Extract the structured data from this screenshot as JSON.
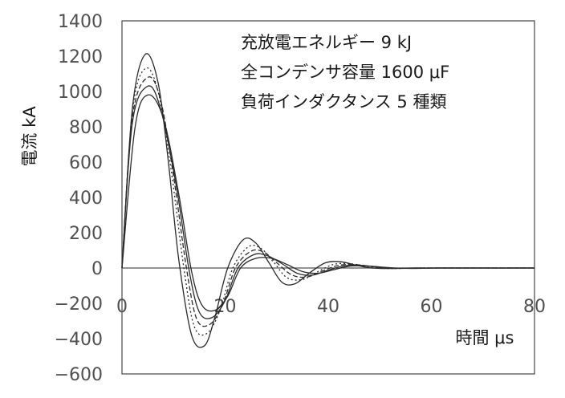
{
  "chart_data": {
    "type": "line",
    "ylabel": "電流 kA",
    "xlabel": "時間 μs",
    "xlim": [
      0,
      80
    ],
    "ylim": [
      -600,
      1400
    ],
    "x_ticks": [
      0,
      20,
      40,
      60,
      80
    ],
    "y_ticks": [
      1400,
      1200,
      1000,
      800,
      600,
      400,
      200,
      0,
      -200,
      -400,
      -600
    ],
    "x_tick_labels": [
      "0",
      "20",
      "40",
      "60",
      "80"
    ],
    "y_tick_labels": [
      "1400",
      "1200",
      "1000",
      "800",
      "600",
      "400",
      "200",
      "0",
      "−200",
      "−400",
      "−600"
    ],
    "grid": false,
    "annotations": [
      "充放電エネルギー 9 kJ",
      "全コンデンサ容量 1600 μF",
      "負荷インダクタンス 5 種類"
    ],
    "series": [
      {
        "style": "solid",
        "x": [
          0,
          2,
          4.5,
          7,
          9,
          11,
          13.5,
          16,
          18,
          20.5,
          23.5,
          26,
          28.5,
          31,
          33.5,
          36.5,
          39.5,
          42.5,
          45.5,
          48.5,
          52,
          56,
          60,
          65,
          70,
          80
        ],
        "y": [
          0,
          900,
          1210,
          1050,
          600,
          50,
          -380,
          -440,
          -280,
          0,
          160,
          140,
          30,
          -80,
          -90,
          -25,
          30,
          35,
          15,
          0,
          -3,
          0,
          0,
          0,
          0,
          0
        ]
      },
      {
        "style": "dotted",
        "x": [
          0,
          2,
          4.5,
          7,
          9.5,
          12,
          14,
          16.5,
          19,
          21.5,
          24.5,
          27,
          29.5,
          32,
          35,
          38,
          41,
          44,
          47,
          50,
          53,
          57,
          62,
          68,
          80
        ],
        "y": [
          0,
          880,
          1130,
          1000,
          560,
          0,
          -330,
          -370,
          -240,
          0,
          120,
          110,
          30,
          -55,
          -65,
          -20,
          20,
          25,
          12,
          0,
          -3,
          0,
          0,
          0,
          0
        ]
      },
      {
        "style": "dashed",
        "x": [
          0,
          2,
          5,
          7.5,
          10,
          12.5,
          14.5,
          17,
          19.5,
          22,
          25,
          27.5,
          30,
          33,
          36,
          39,
          42,
          45,
          48,
          51,
          54,
          58,
          63,
          70,
          80
        ],
        "y": [
          0,
          850,
          1080,
          950,
          520,
          0,
          -290,
          -320,
          -210,
          0,
          95,
          90,
          30,
          -40,
          -50,
          -15,
          15,
          20,
          10,
          0,
          -2,
          0,
          0,
          0,
          0
        ]
      },
      {
        "style": "solid",
        "x": [
          0,
          2,
          5,
          7.5,
          10.5,
          13,
          15,
          17.5,
          20,
          22.5,
          25.5,
          28,
          31,
          34,
          37,
          40,
          43,
          46,
          49,
          52,
          56,
          60,
          65,
          72,
          80
        ],
        "y": [
          0,
          820,
          1030,
          900,
          470,
          -10,
          -250,
          -280,
          -185,
          0,
          75,
          72,
          25,
          -30,
          -40,
          -12,
          12,
          15,
          8,
          0,
          -2,
          0,
          0,
          0,
          0
        ]
      },
      {
        "style": "solid",
        "x": [
          0,
          2.5,
          5,
          8,
          11,
          13.5,
          15.5,
          18,
          20.5,
          23,
          26,
          29,
          32,
          35,
          38,
          41,
          44,
          47,
          50,
          53,
          57,
          61,
          66,
          74,
          80
        ],
        "y": [
          0,
          790,
          980,
          850,
          420,
          -20,
          -210,
          -240,
          -160,
          0,
          55,
          55,
          20,
          -20,
          -30,
          -10,
          10,
          12,
          6,
          0,
          -2,
          0,
          0,
          0,
          0
        ]
      }
    ]
  }
}
